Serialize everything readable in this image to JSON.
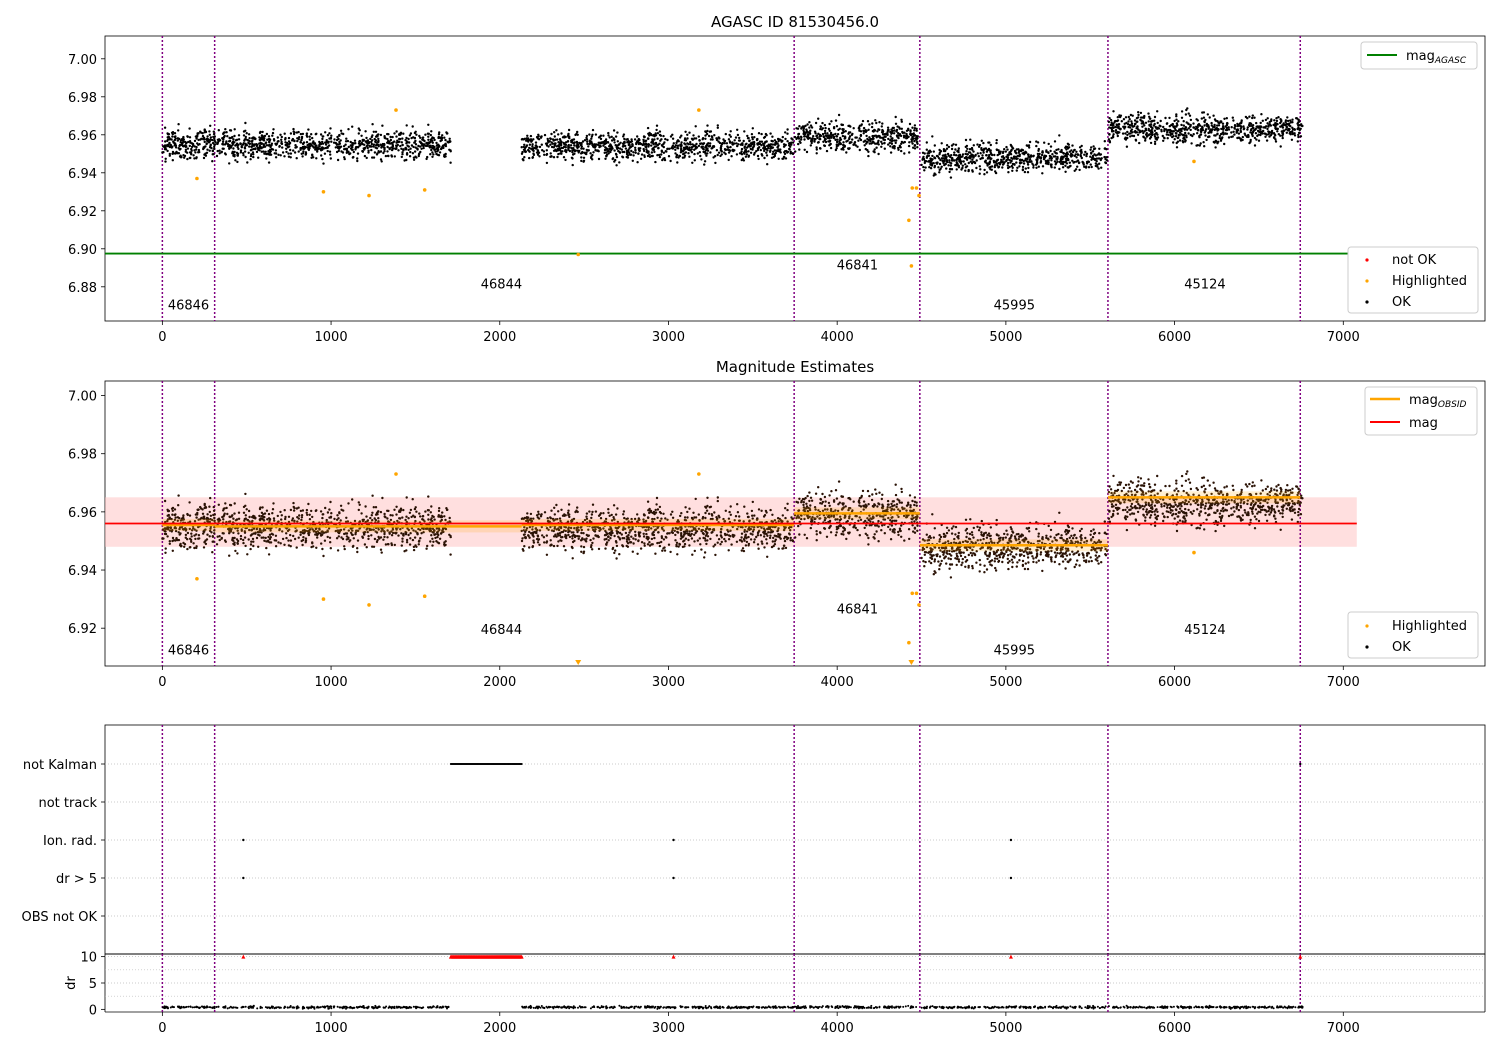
{
  "figure": {
    "title_top": "AGASC ID 81530456.0",
    "title_mid": "Magnitude Estimates"
  },
  "colors": {
    "ok": "#000000",
    "highlighted": "#ffa500",
    "not_ok": "#ff0000",
    "mag_agasc": "#008000",
    "mag_obsid": "#ffa500",
    "mag": "#ff0000",
    "band": "#ffc0c0",
    "obsid_line": "#800080",
    "dr_flag": "#ff0000"
  },
  "chart_data": [
    {
      "type": "scatter",
      "title": "AGASC ID 81530456.0",
      "xlim": [
        -340,
        7840
      ],
      "ylim": [
        6.862,
        7.012
      ],
      "x_ticks": [
        0,
        1000,
        2000,
        3000,
        4000,
        5000,
        6000,
        7000
      ],
      "y_ticks": [
        6.88,
        6.9,
        6.92,
        6.94,
        6.96,
        6.98,
        7.0
      ],
      "series": [
        {
          "name": "not OK",
          "values": []
        },
        {
          "name": "Highlighted",
          "points": [
            [
              205,
              6.937
            ],
            [
              955,
              6.93
            ],
            [
              1225,
              6.928
            ],
            [
              1385,
              6.973
            ],
            [
              1555,
              6.931
            ],
            [
              2465,
              6.897
            ],
            [
              3180,
              6.973
            ],
            [
              4425,
              6.915
            ],
            [
              4440,
              6.891
            ],
            [
              4445,
              6.932
            ],
            [
              4470,
              6.932
            ],
            [
              4485,
              6.928
            ],
            [
              6115,
              6.946
            ]
          ]
        },
        {
          "name": "OK",
          "segments": [
            {
              "x": [
                0,
                1710
              ],
              "level": 6.955
            },
            {
              "x": [
                2130,
                3740
              ],
              "level": 6.954
            },
            {
              "x": [
                3750,
                4480
              ],
              "level": 6.959
            },
            {
              "x": [
                4500,
                5600
              ],
              "level": 6.948
            },
            {
              "x": [
                5610,
                6760
              ],
              "level": 6.963
            }
          ]
        }
      ],
      "lines": [
        {
          "name": "mag_AGASC",
          "y": 6.8975
        }
      ],
      "obsid_x": [
        0,
        310,
        3745,
        4490,
        5605,
        6745
      ],
      "obsid_labels": [
        {
          "text": "46846",
          "x": 155,
          "y": 6.868
        },
        {
          "text": "46844",
          "x": 2010,
          "y": 6.879
        },
        {
          "text": "46841",
          "x": 4120,
          "y": 6.889
        },
        {
          "text": "45995",
          "x": 5050,
          "y": 6.868
        },
        {
          "text": "45124",
          "x": 6180,
          "y": 6.879
        }
      ],
      "legend_upper": [
        "mag_AGASC"
      ],
      "legend_lower": [
        "not OK",
        "Highlighted",
        "OK"
      ]
    },
    {
      "type": "scatter",
      "title": "Magnitude Estimates",
      "xlim": [
        -340,
        7840
      ],
      "ylim": [
        6.907,
        7.005
      ],
      "x_ticks": [
        0,
        1000,
        2000,
        3000,
        4000,
        5000,
        6000,
        7000
      ],
      "y_ticks": [
        6.92,
        6.94,
        6.96,
        6.98,
        7.0
      ],
      "mag": 6.956,
      "band": [
        6.948,
        6.965
      ],
      "mag_obsid": [
        {
          "x": [
            0,
            310
          ],
          "y": 6.9555
        },
        {
          "x": [
            310,
            2130
          ],
          "y": 6.955
        },
        {
          "x": [
            2130,
            3745
          ],
          "y": 6.9555
        },
        {
          "x": [
            3745,
            4490
          ],
          "y": 6.9595
        },
        {
          "x": [
            4490,
            5605
          ],
          "y": 6.9485
        },
        {
          "x": [
            5605,
            6745
          ],
          "y": 6.965
        }
      ],
      "obsid_x": [
        0,
        310,
        3745,
        4490,
        5605,
        6745
      ],
      "obsid_labels": [
        {
          "text": "46846",
          "x": 155,
          "y": 6.911
        },
        {
          "text": "46844",
          "x": 2010,
          "y": 6.918
        },
        {
          "text": "46841",
          "x": 4120,
          "y": 6.925
        },
        {
          "text": "45995",
          "x": 5050,
          "y": 6.911
        },
        {
          "text": "45124",
          "x": 6180,
          "y": 6.918
        }
      ],
      "legend_upper": [
        "mag_OBSID",
        "mag"
      ],
      "legend_lower": [
        "Highlighted",
        "OK"
      ]
    },
    {
      "type": "scatter",
      "title": "",
      "xlim": [
        -340,
        7840
      ],
      "categories": [
        "not Kalman",
        "not track",
        "Ion. rad.",
        "dr > 5",
        "OBS not OK"
      ],
      "flags": {
        "not Kalman": {
          "ranges": [
            [
              1710,
              2130
            ]
          ],
          "points": [
            6745
          ]
        },
        "not track": {
          "ranges": [],
          "points": []
        },
        "Ion. rad.": {
          "ranges": [],
          "points": [
            480,
            3030,
            5030
          ]
        },
        "dr > 5": {
          "ranges": [],
          "points": [
            480,
            3030,
            5030
          ]
        },
        "OBS not OK": {
          "ranges": [],
          "points": []
        }
      },
      "obsid_x": [
        0,
        310,
        3745,
        4490,
        5605,
        6745
      ]
    },
    {
      "type": "scatter",
      "title": "",
      "xlim": [
        -340,
        7840
      ],
      "ylim": [
        -0.5,
        10.5
      ],
      "ylabel": "dr",
      "x_ticks": [
        0,
        1000,
        2000,
        3000,
        4000,
        5000,
        6000,
        7000
      ],
      "y_ticks": [
        0,
        5,
        10
      ],
      "capped_points_x": [
        480,
        3030,
        5030,
        6745
      ],
      "capped_range": [
        1710,
        2130
      ],
      "typical_dr": 0.4,
      "obsid_x": [
        0,
        310,
        3745,
        4490,
        5605,
        6745
      ]
    }
  ],
  "legends": {
    "top_upper": {
      "base": "mag",
      "sub": "AGASC"
    },
    "top_lower": [
      "not OK",
      "Highlighted",
      "OK"
    ],
    "mid_upper": [
      {
        "base": "mag",
        "sub": "OBSID"
      },
      {
        "base": "mag",
        "sub": ""
      }
    ],
    "mid_lower": [
      "Highlighted",
      "OK"
    ]
  }
}
